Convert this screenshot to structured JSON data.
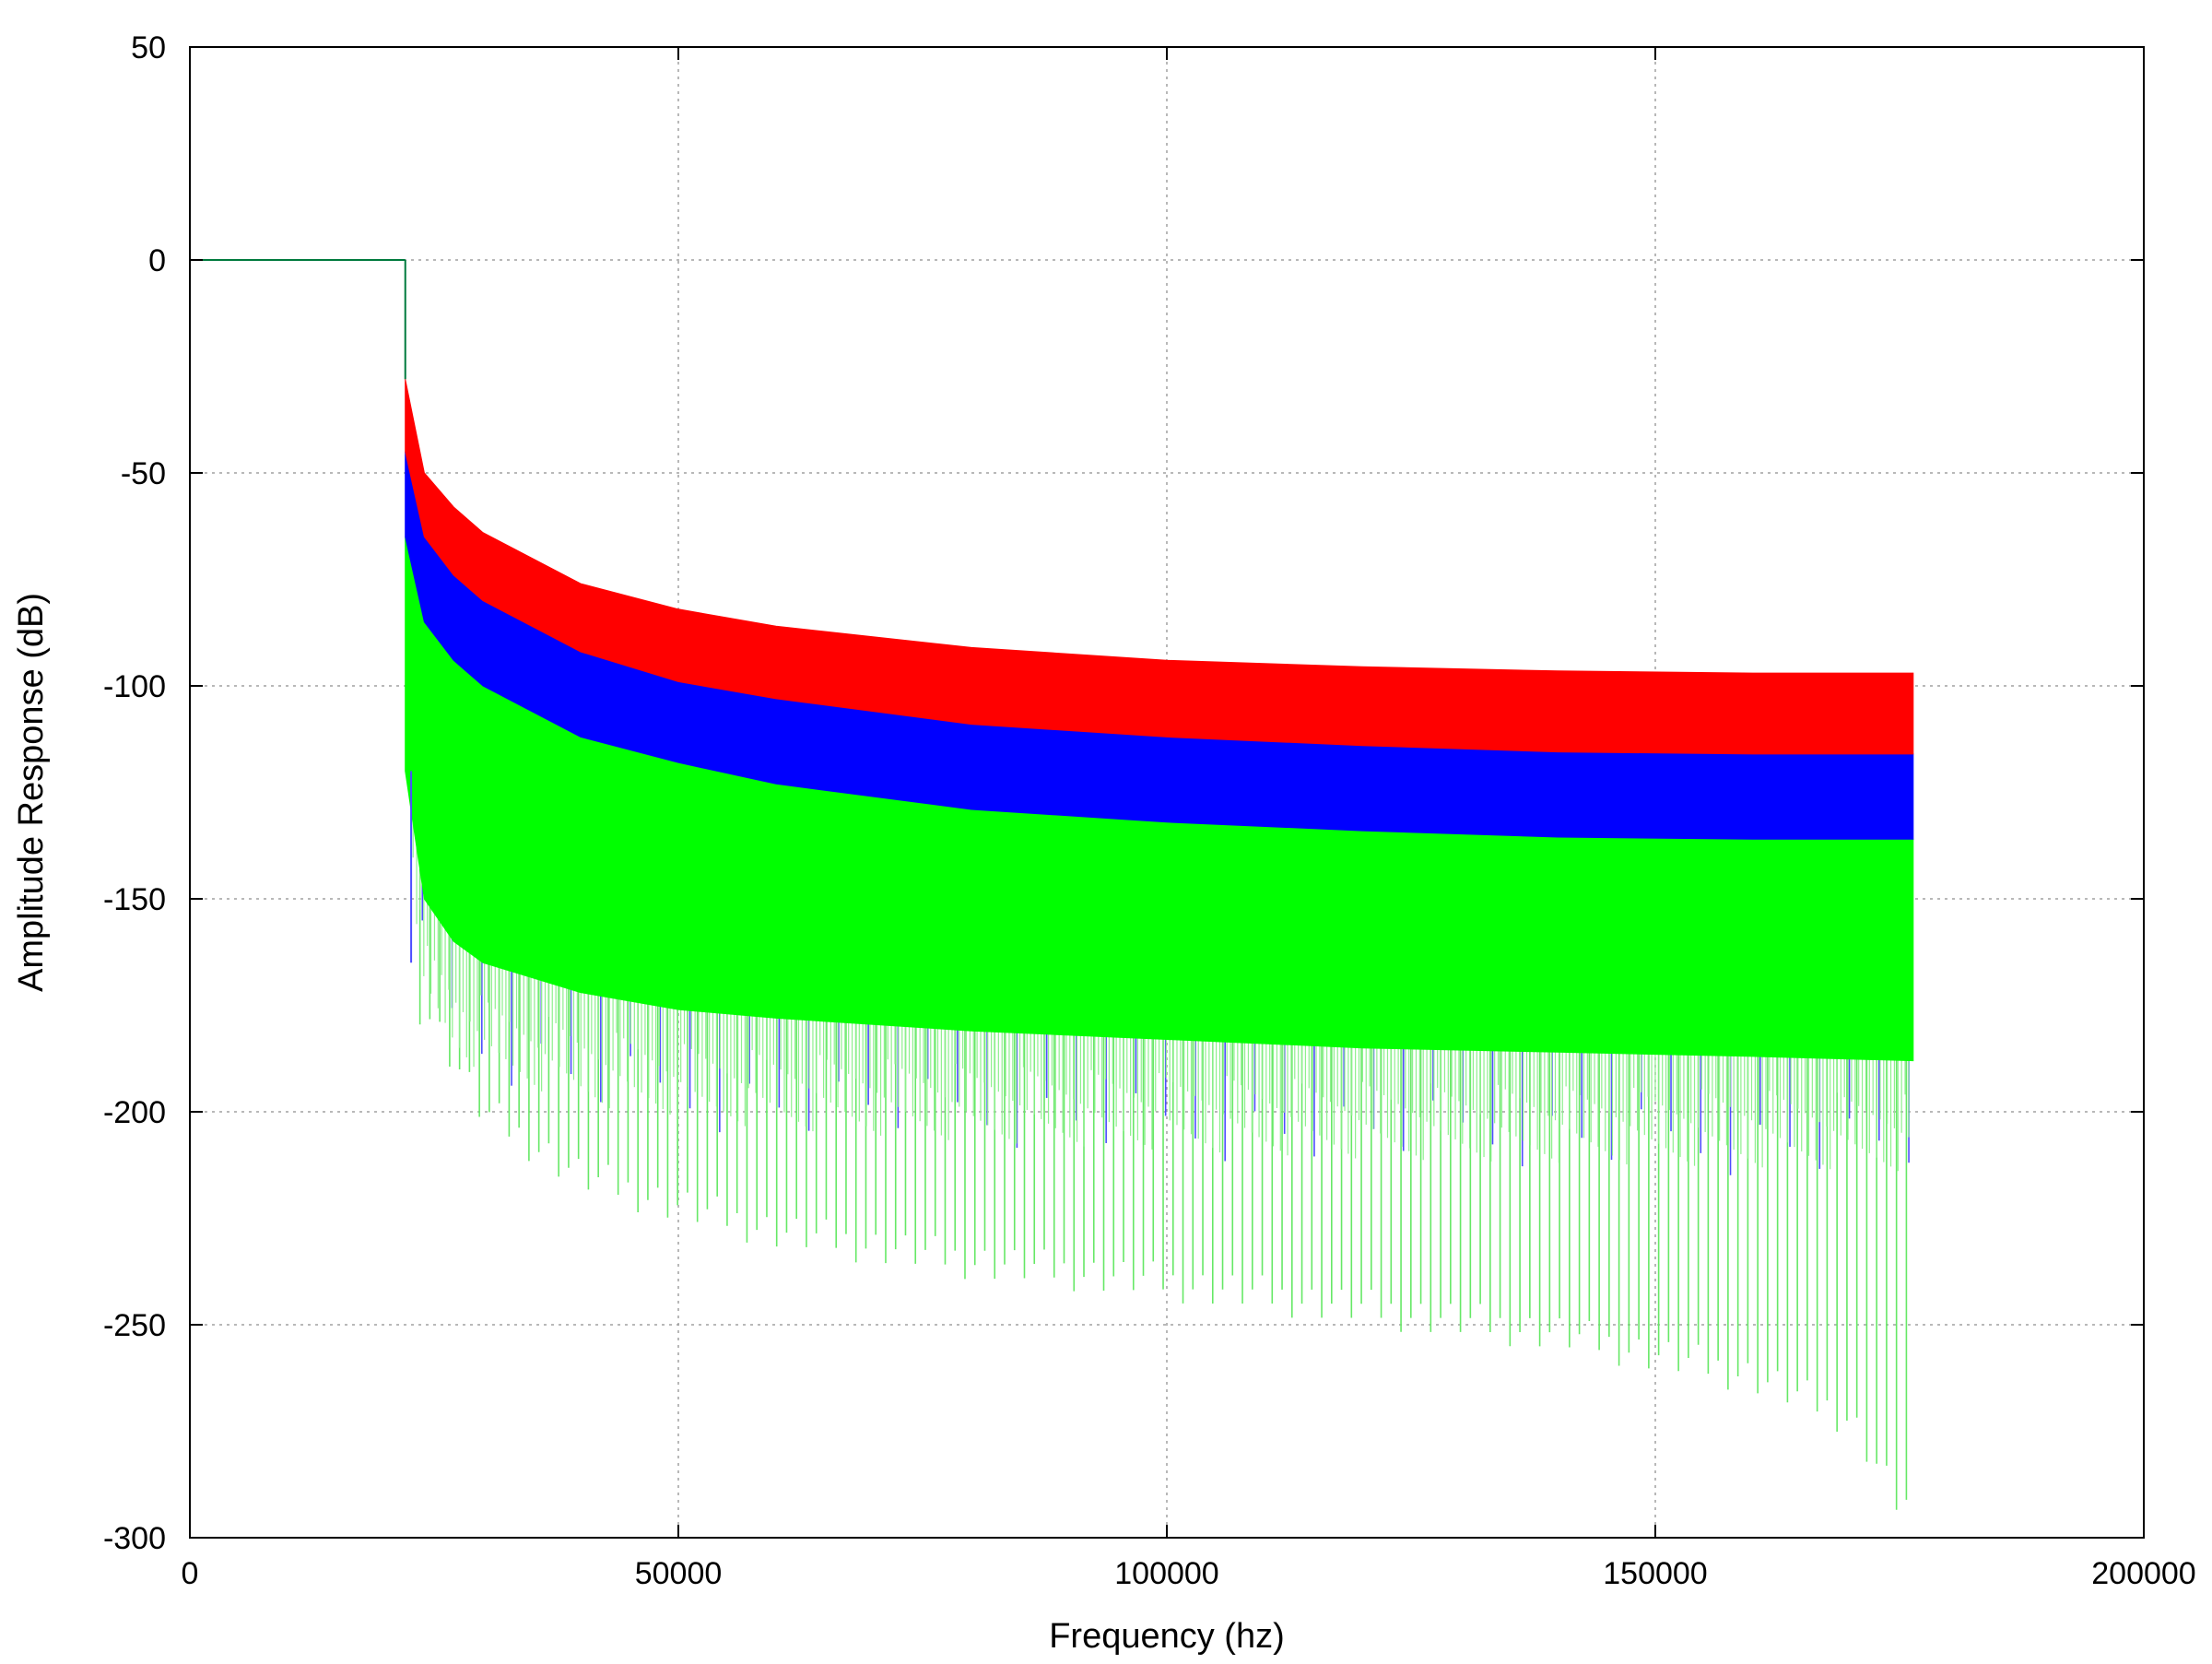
{
  "chart_data": {
    "type": "area",
    "title": "",
    "xlabel": "Frequency (hz)",
    "ylabel": "Amplitude Response (dB)",
    "xlim": [
      0,
      200000
    ],
    "ylim": [
      -300,
      50
    ],
    "xticks": [
      0,
      50000,
      100000,
      150000,
      200000
    ],
    "yticks": [
      50,
      0,
      -50,
      -100,
      -150,
      -200,
      -250,
      -300
    ],
    "xtick_labels": [
      "0",
      "50000",
      "100000",
      "150000",
      "200000"
    ],
    "ytick_labels": [
      "50",
      "0",
      "-50",
      "-100",
      "-150",
      "-200",
      "-250",
      "-300"
    ],
    "grid": true,
    "legend": "none",
    "passband": {
      "x": [
        0,
        22050
      ],
      "y": 0
    },
    "series": [
      {
        "color": "#ff0000",
        "band_x": [
          22050,
          24000,
          27000,
          30000,
          40000,
          50000,
          60000,
          80000,
          100000,
          120000,
          140000,
          160000,
          176400
        ],
        "upper": [
          -28,
          -50,
          -58,
          -64,
          -76,
          -82,
          -86,
          -91,
          -94,
          -95.5,
          -96.5,
          -97,
          -97
        ],
        "lower": [
          -45,
          -65,
          -74,
          -80,
          -92,
          -99,
          -103,
          -109,
          -112,
          -114,
          -115.5,
          -116,
          -116
        ]
      },
      {
        "color": "#0000ff",
        "band_x": [
          22050,
          24000,
          27000,
          30000,
          40000,
          50000,
          60000,
          80000,
          100000,
          120000,
          140000,
          160000,
          176400
        ],
        "upper": [
          -45,
          -65,
          -74,
          -80,
          -92,
          -99,
          -103,
          -109,
          -112,
          -114,
          -115.5,
          -116,
          -116
        ],
        "lower": [
          -65,
          -85,
          -94,
          -100,
          -112,
          -118,
          -123,
          -129,
          -132,
          -134,
          -135.5,
          -136,
          -136
        ]
      },
      {
        "color": "#00ff00",
        "band_x": [
          22050,
          24000,
          27000,
          30000,
          40000,
          50000,
          60000,
          80000,
          100000,
          120000,
          140000,
          160000,
          176400
        ],
        "upper": [
          -65,
          -85,
          -94,
          -100,
          -112,
          -118,
          -123,
          -129,
          -132,
          -134,
          -135.5,
          -136,
          -136
        ],
        "lower": [
          -120,
          -150,
          -160,
          -165,
          -172,
          -176,
          -178,
          -181,
          -183,
          -185,
          -186,
          -187,
          -188
        ],
        "deep_spikes_x": [
          22050,
          176400
        ],
        "deep_spikes_y": [
          -165,
          -292
        ],
        "deep_spike_envelope": {
          "x": [
            24000,
            30000,
            40000,
            50000,
            60000,
            80000,
            100000,
            120000,
            140000,
            160000,
            170000,
            175000
          ],
          "y": [
            -175,
            -200,
            -215,
            -222,
            -228,
            -235,
            -240,
            -246,
            -252,
            -262,
            -272,
            -292
          ]
        }
      }
    ]
  }
}
